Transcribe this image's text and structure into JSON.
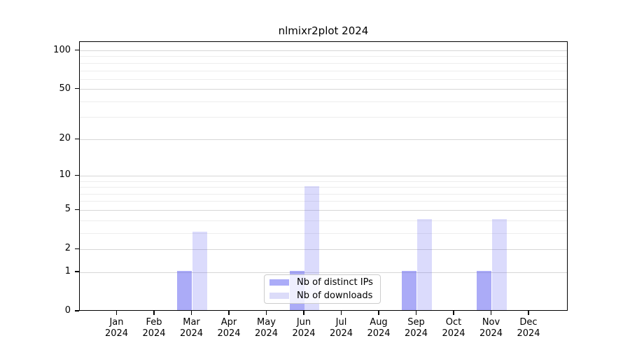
{
  "title": "nlmixr2plot 2024",
  "chart_data": {
    "type": "bar",
    "title": "nlmixr2plot 2024",
    "categories": [
      "Jan",
      "Feb",
      "Mar",
      "Apr",
      "May",
      "Jun",
      "Jul",
      "Aug",
      "Sep",
      "Oct",
      "Nov",
      "Dec"
    ],
    "category_year": "2024",
    "series": [
      {
        "name": "Nb of distinct IPs",
        "color": "rgba(88,88,240,0.5)",
        "color_hex_on_white": "#abacf8",
        "values": [
          0,
          0,
          1,
          0,
          0,
          1,
          0,
          0,
          1,
          0,
          1,
          0
        ]
      },
      {
        "name": "Nb of downloads",
        "color": "rgba(92,92,240,0.22)",
        "color_hex_on_white": "#dcdcf9",
        "values": [
          0,
          0,
          3,
          0,
          0,
          8,
          0,
          0,
          4,
          0,
          4,
          0
        ]
      }
    ],
    "xlabel": "",
    "ylabel": "",
    "y_axis": {
      "scale": "log1p",
      "ticks": [
        0,
        1,
        2,
        5,
        10,
        20,
        50,
        100
      ],
      "minor_gridlines": [
        3,
        4,
        6,
        7,
        8,
        9,
        30,
        40,
        60,
        70,
        80,
        90
      ],
      "ylim": [
        0,
        110
      ]
    },
    "grid": true,
    "legend": {
      "position": "bottom-center-inside"
    }
  }
}
